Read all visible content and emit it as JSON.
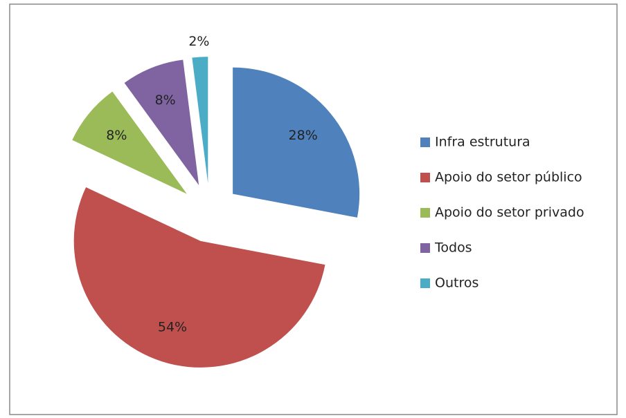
{
  "chart_data": {
    "type": "pie",
    "categories": [
      "Infra estrutura",
      "Apoio  do setor público",
      "Apoio do setor privado",
      "Todos",
      "Outros"
    ],
    "values": [
      28,
      54,
      8,
      8,
      2
    ],
    "value_labels": [
      "28%",
      "54%",
      "8%",
      "8%",
      "2%"
    ],
    "colors": [
      "#4f81bd",
      "#c0504d",
      "#9bbb59",
      "#8064a2",
      "#4bacc6"
    ],
    "exploded": true,
    "legend": "right"
  }
}
